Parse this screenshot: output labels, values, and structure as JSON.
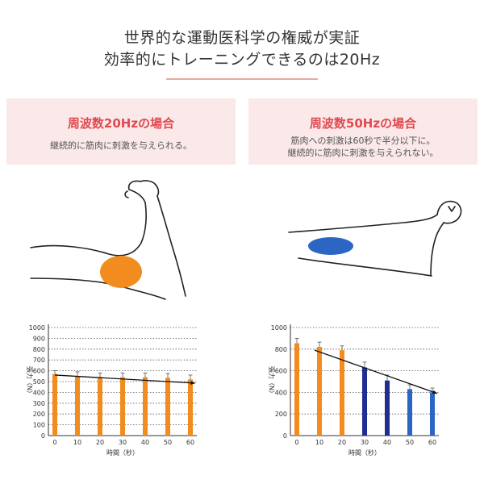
{
  "header": {
    "line1": "世界的な運動医科学の権威が実証",
    "line2": "効率的にトレーニングできるのは20Hz"
  },
  "panels": {
    "left": {
      "title": "周波数20Hzの場合",
      "desc": "継続的に筋肉に刺激を与えられる。"
    },
    "right": {
      "title": "周波数50Hzの場合",
      "desc1": "筋肉への刺激は60秒で半分以下に。",
      "desc2": "継続的に筋肉に刺激を与えられない。"
    }
  },
  "colors": {
    "orange": "#f28c1e",
    "blue": "#2b66c4",
    "darkblue": "#1f2f8f",
    "accent": "#e04a50"
  },
  "chart_data": [
    {
      "type": "bar",
      "categories": [
        "0",
        "10",
        "20",
        "30",
        "40",
        "50",
        "60"
      ],
      "values": [
        570,
        550,
        540,
        540,
        540,
        535,
        520
      ],
      "errors": [
        30,
        40,
        40,
        40,
        40,
        40,
        40
      ],
      "bar_colors": [
        "orange",
        "orange",
        "orange",
        "orange",
        "orange",
        "orange",
        "orange"
      ],
      "trend": [
        560,
        485
      ],
      "xlabel": "時間（秒）",
      "ylabel": "張力（N）",
      "ylim": [
        0,
        1000
      ],
      "yticks": [
        0,
        100,
        200,
        300,
        400,
        500,
        600,
        700,
        800,
        900,
        1000
      ],
      "grid": true
    },
    {
      "type": "bar",
      "categories": [
        "0",
        "10",
        "20",
        "30",
        "40",
        "50",
        "60"
      ],
      "values": [
        855,
        820,
        790,
        630,
        510,
        430,
        400
      ],
      "errors": [
        45,
        45,
        40,
        50,
        50,
        40,
        40
      ],
      "bar_colors": [
        "orange",
        "orange",
        "orange",
        "darkblue",
        "darkblue",
        "blue",
        "blue"
      ],
      "trend": [
        790,
        390
      ],
      "xlabel": "時間（秒）",
      "ylabel": "張力（N）",
      "ylim": [
        0,
        1000
      ],
      "yticks": [
        0,
        200,
        400,
        600,
        800,
        1000
      ],
      "grid": true
    }
  ]
}
